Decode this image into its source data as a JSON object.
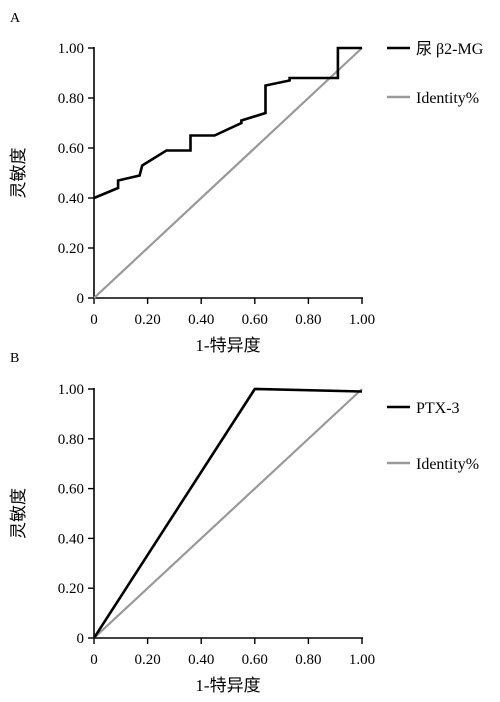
{
  "chart_data": [
    {
      "panel_label": "A",
      "type": "line",
      "title": "",
      "xlabel": "1-特异度",
      "ylabel": "灵敏度",
      "xlim": [
        0,
        1
      ],
      "ylim": [
        0,
        1
      ],
      "x_tick_labels": [
        "0",
        "0.20",
        "0.40",
        "0.60",
        "0.80",
        "1.00"
      ],
      "y_tick_labels": [
        "0",
        "0.20",
        "0.40",
        "0.60",
        "0.80",
        "1.00"
      ],
      "grid": false,
      "legend_position": "right",
      "series": [
        {
          "name": "尿 β2-MG",
          "color": "#000000",
          "points": [
            [
              0,
              0.4
            ],
            [
              0.09,
              0.44
            ],
            [
              0.09,
              0.47
            ],
            [
              0.17,
              0.49
            ],
            [
              0.18,
              0.53
            ],
            [
              0.27,
              0.59
            ],
            [
              0.36,
              0.59
            ],
            [
              0.36,
              0.65
            ],
            [
              0.45,
              0.65
            ],
            [
              0.55,
              0.7
            ],
            [
              0.55,
              0.71
            ],
            [
              0.64,
              0.74
            ],
            [
              0.64,
              0.85
            ],
            [
              0.73,
              0.87
            ],
            [
              0.73,
              0.88
            ],
            [
              0.91,
              0.88
            ],
            [
              0.91,
              1.0
            ],
            [
              1.0,
              1.0
            ]
          ]
        },
        {
          "name": "Identity%",
          "color": "#999999",
          "points": [
            [
              0,
              0
            ],
            [
              1,
              1
            ]
          ]
        }
      ]
    },
    {
      "panel_label": "B",
      "type": "line",
      "title": "",
      "xlabel": "1-特异度",
      "ylabel": "灵敏度",
      "xlim": [
        0,
        1
      ],
      "ylim": [
        0,
        1
      ],
      "x_tick_labels": [
        "0",
        "0.20",
        "0.40",
        "0.60",
        "0.80",
        "1.00"
      ],
      "y_tick_labels": [
        "0",
        "0.20",
        "0.40",
        "0.60",
        "0.80",
        "1.00"
      ],
      "grid": false,
      "legend_position": "right",
      "series": [
        {
          "name": "PTX-3",
          "color": "#000000",
          "points": [
            [
              0,
              0
            ],
            [
              0.6,
              1.0
            ],
            [
              1.0,
              0.99
            ]
          ]
        },
        {
          "name": "Identity%",
          "color": "#999999",
          "points": [
            [
              0,
              0
            ],
            [
              1,
              1
            ]
          ]
        }
      ]
    }
  ]
}
